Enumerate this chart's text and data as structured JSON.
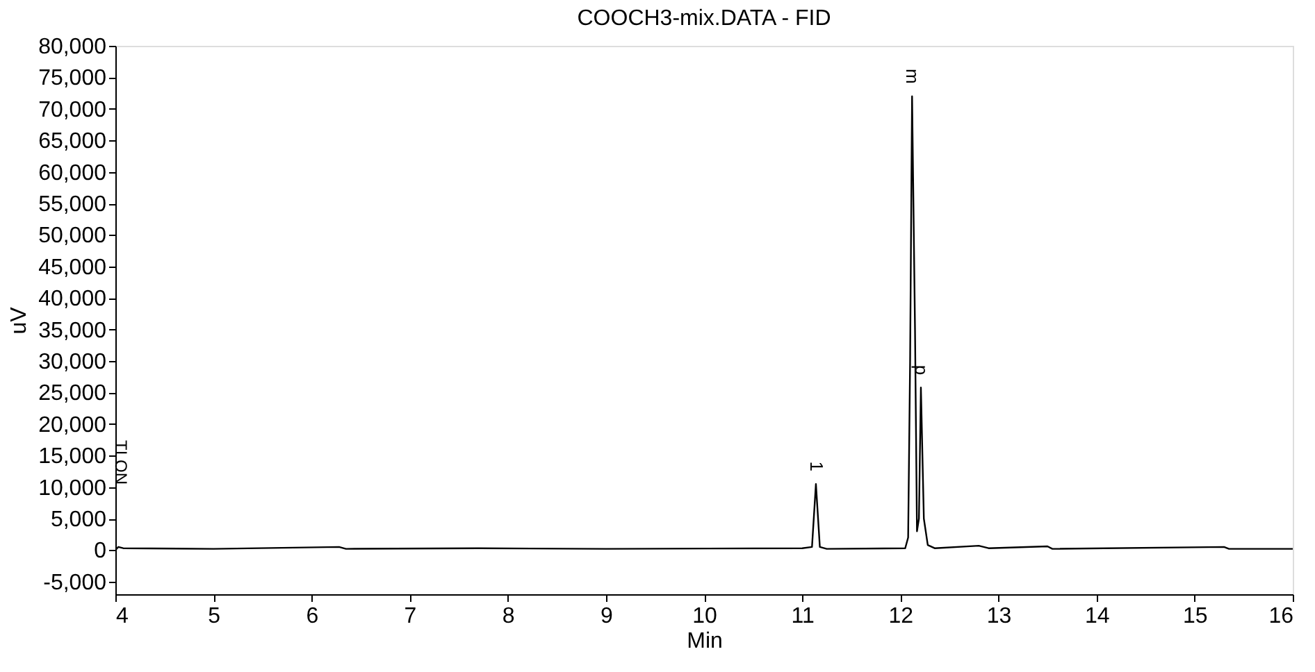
{
  "chart_data": {
    "type": "line",
    "title": "COOCH3-mix.DATA - FID",
    "xlabel": "Min",
    "ylabel": "uV",
    "x": [
      4.0,
      4.03,
      4.08,
      5.0,
      6.28,
      6.35,
      7.7,
      9.0,
      11.0,
      11.1,
      11.14,
      11.18,
      11.25,
      12.05,
      12.08,
      12.1,
      12.12,
      12.15,
      12.17,
      12.19,
      12.21,
      12.24,
      12.28,
      12.35,
      12.8,
      12.9,
      13.5,
      13.55,
      15.3,
      15.35,
      16.0
    ],
    "series": [
      {
        "color": "#000000",
        "values": [
          0,
          500,
          300,
          200,
          500,
          200,
          300,
          200,
          300,
          500,
          10500,
          500,
          200,
          300,
          2000,
          30000,
          72000,
          35000,
          3000,
          5000,
          25800,
          5000,
          800,
          300,
          700,
          300,
          600,
          200,
          500,
          200,
          200
        ]
      }
    ],
    "xlim": [
      4,
      16
    ],
    "xticks": [
      4,
      5,
      6,
      7,
      8,
      9,
      10,
      11,
      12,
      13,
      14,
      15,
      16
    ],
    "ylim": [
      -7000,
      80000
    ],
    "yticks": [
      {
        "value": -5000,
        "label": "-5,000"
      },
      0,
      {
        "value": 5000,
        "label": "5,000"
      },
      {
        "value": 10000,
        "label": "10,000"
      },
      {
        "value": 15000,
        "label": "15,000"
      },
      {
        "value": 20000,
        "label": "20,000"
      },
      {
        "value": 25000,
        "label": "25,000"
      },
      {
        "value": 30000,
        "label": "30,000"
      },
      {
        "value": 35000,
        "label": "35,000"
      },
      {
        "value": 40000,
        "label": "40,000"
      },
      {
        "value": 45000,
        "label": "45,000"
      },
      {
        "value": 50000,
        "label": "50,000"
      },
      {
        "value": 55000,
        "label": "55,000"
      },
      {
        "value": 60000,
        "label": "60,000"
      },
      {
        "value": 65000,
        "label": "65,000"
      },
      {
        "value": 70000,
        "label": "70,000"
      },
      {
        "value": 75000,
        "label": "75,000"
      },
      {
        "value": 80000,
        "label": "80,000"
      }
    ],
    "grid": false,
    "legend": false,
    "marker": "none",
    "line_style": "solid",
    "annotations": [
      {
        "text": "1",
        "x": 11.14,
        "y": 10500
      },
      {
        "text": "m",
        "x": 12.12,
        "y": 72000
      },
      {
        "text": "p",
        "x": 12.21,
        "y": 25800
      },
      "TI ON"
    ]
  }
}
